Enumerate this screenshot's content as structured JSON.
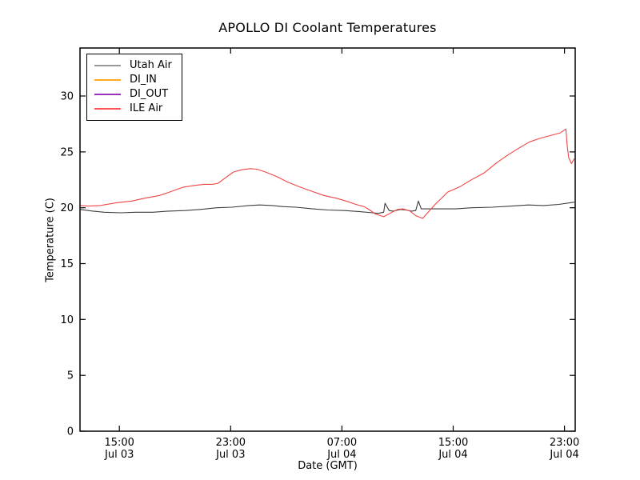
{
  "title": "APOLLO DI Coolant Temperatures",
  "axes": {
    "xlabel": "Date (GMT)",
    "ylabel": "Temperature (C)",
    "x_unit": "hours since Jul 03 00:00 GMT",
    "xlim": [
      12.17,
      47.77
    ],
    "ylim": [
      0,
      34.3
    ],
    "yticks": [
      0,
      5,
      10,
      15,
      20,
      25,
      30
    ],
    "xticks": [
      {
        "t": 15,
        "time": "15:00",
        "date": "Jul 03"
      },
      {
        "t": 23,
        "time": "23:00",
        "date": "Jul 03"
      },
      {
        "t": 31,
        "time": "07:00",
        "date": "Jul 04"
      },
      {
        "t": 39,
        "time": "15:00",
        "date": "Jul 04"
      },
      {
        "t": 47,
        "time": "23:00",
        "date": "Jul 04"
      }
    ],
    "grid": false,
    "tick_direction": "in",
    "ticks_on_all_spines": true
  },
  "chart_data": {
    "type": "line",
    "title": "APOLLO DI Coolant Temperatures",
    "xlabel": "Date (GMT)",
    "ylabel": "Temperature (C)",
    "legend_position": "upper-left",
    "series": [
      {
        "name": "Utah Air",
        "color": "#3d3d3d",
        "legend_color": "#999999",
        "t": [
          12.2,
          13.1,
          13.9,
          15.1,
          16.2,
          17.4,
          18.5,
          19.7,
          20.8,
          22.0,
          23.1,
          24.3,
          25.1,
          26.0,
          26.8,
          27.7,
          28.9,
          30.0,
          31.2,
          32.3,
          33.2,
          33.6,
          34.0,
          34.1,
          34.4,
          34.7,
          35.2,
          35.6,
          36.0,
          36.3,
          36.5,
          36.7,
          37.2,
          38.0,
          39.2,
          40.3,
          41.8,
          43.2,
          44.4,
          45.5,
          46.6,
          47.7
        ],
        "v": [
          19.85,
          19.7,
          19.6,
          19.55,
          19.6,
          19.6,
          19.7,
          19.75,
          19.85,
          20.0,
          20.05,
          20.2,
          20.25,
          20.2,
          20.1,
          20.05,
          19.9,
          19.8,
          19.75,
          19.65,
          19.55,
          19.5,
          19.6,
          20.4,
          19.75,
          19.7,
          19.85,
          19.8,
          19.7,
          19.75,
          20.6,
          19.9,
          19.9,
          19.9,
          19.9,
          20.0,
          20.05,
          20.15,
          20.25,
          20.2,
          20.3,
          20.5
        ]
      },
      {
        "name": "DI_IN",
        "color": "#ffaa22",
        "legend_color": "#ffaa22",
        "t": [],
        "v": []
      },
      {
        "name": "DI_OUT",
        "color": "#9933bb",
        "legend_color": "#9933bb",
        "t": [],
        "v": []
      },
      {
        "name": "ILE Air",
        "color": "#f04545",
        "legend_color": "#ff5555",
        "t": [
          12.2,
          12.8,
          13.6,
          14.8,
          15.9,
          16.8,
          17.9,
          18.6,
          19.6,
          20.4,
          21.1,
          21.7,
          22.1,
          22.7,
          23.2,
          23.8,
          24.4,
          24.9,
          25.5,
          26.3,
          27.1,
          28.0,
          28.9,
          29.7,
          30.6,
          31.3,
          32.0,
          32.6,
          33.0,
          33.4,
          34.0,
          34.6,
          35.0,
          35.4,
          35.9,
          36.3,
          36.8,
          37.2,
          37.7,
          38.2,
          38.6,
          39.5,
          40.3,
          41.2,
          42.1,
          42.9,
          43.8,
          44.5,
          45.2,
          46.1,
          46.7,
          47.1,
          47.2,
          47.3,
          47.5,
          47.7
        ],
        "v": [
          20.2,
          20.15,
          20.2,
          20.45,
          20.6,
          20.85,
          21.1,
          21.4,
          21.85,
          22.0,
          22.1,
          22.1,
          22.2,
          22.75,
          23.2,
          23.4,
          23.5,
          23.45,
          23.2,
          22.8,
          22.3,
          21.85,
          21.45,
          21.1,
          20.85,
          20.6,
          20.3,
          20.1,
          19.8,
          19.45,
          19.2,
          19.6,
          19.85,
          19.9,
          19.7,
          19.3,
          19.05,
          19.6,
          20.3,
          20.9,
          21.4,
          21.9,
          22.5,
          23.1,
          24.0,
          24.7,
          25.4,
          25.9,
          26.2,
          26.5,
          26.7,
          27.05,
          25.5,
          24.5,
          23.95,
          24.4
        ]
      }
    ]
  }
}
